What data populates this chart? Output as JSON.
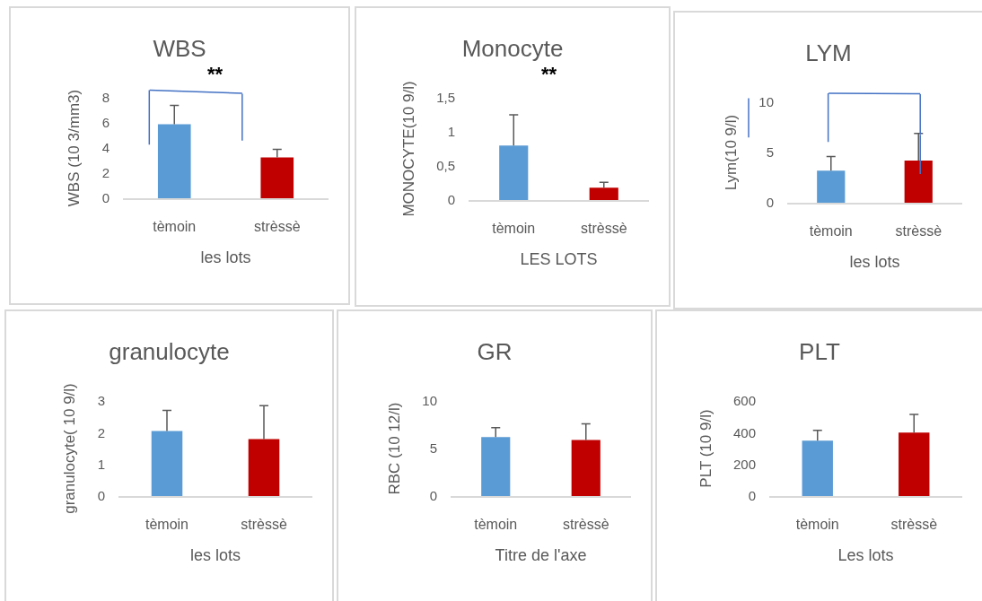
{
  "chart_data": [
    {
      "type": "bar",
      "title": "WBS",
      "xlabel": "les lots",
      "ylabel": "WBS (10 3/mm3)",
      "categories": [
        "tèmoin",
        "strèssè"
      ],
      "values": [
        5.9,
        3.25
      ],
      "colors": [
        "#5b9bd5",
        "#c00000"
      ],
      "errors": [
        [
          5.9,
          7.4
        ],
        [
          3.25,
          3.9
        ]
      ],
      "ylim": [
        0,
        8
      ],
      "yticks": [
        0,
        2,
        4,
        6,
        8
      ],
      "annotations": [
        "**"
      ]
    },
    {
      "type": "bar",
      "title": "Monocyte",
      "xlabel": "LES LOTS",
      "ylabel": "MONOCYTE(10 9/l)",
      "categories": [
        "tèmoin",
        "strèssè"
      ],
      "values": [
        0.8,
        0.18
      ],
      "colors": [
        "#5b9bd5",
        "#c00000"
      ],
      "errors": [
        [
          0.8,
          1.25
        ],
        [
          0.18,
          0.26
        ]
      ],
      "ylim": [
        0,
        1.5
      ],
      "yticks": [
        0,
        {
          "value": 0.5,
          "label": "0,5"
        },
        1,
        {
          "value": 1.5,
          "label": "1,5"
        }
      ],
      "annotations": [
        "**"
      ]
    },
    {
      "type": "bar",
      "title": "LYM",
      "xlabel": "les lots",
      "ylabel": "Lym(10 9/l)",
      "categories": [
        "tèmoin",
        "strèssè"
      ],
      "values": [
        3.2,
        4.2
      ],
      "colors": [
        "#5b9bd5",
        "#c00000"
      ],
      "errors": [
        [
          3.2,
          4.6
        ],
        [
          4.2,
          6.9
        ]
      ],
      "ylim": [
        0,
        10
      ],
      "yticks": [
        0,
        5,
        10
      ]
    },
    {
      "type": "bar",
      "title": "granulocyte",
      "xlabel": "les lots",
      "ylabel": "granulocyte( 10 9/l)",
      "categories": [
        "tèmoin",
        "strèssè"
      ],
      "values": [
        2.05,
        1.8
      ],
      "colors": [
        "#5b9bd5",
        "#c00000"
      ],
      "errors": [
        [
          2.05,
          2.7
        ],
        [
          1.8,
          2.85
        ]
      ],
      "ylim": [
        0,
        3
      ],
      "yticks": [
        0,
        1,
        2,
        3
      ]
    },
    {
      "type": "bar",
      "title": "GR",
      "xlabel": "Titre de l'axe",
      "ylabel": "RBC (10 12/l)",
      "categories": [
        "tèmoin",
        "strèssè"
      ],
      "values": [
        6.2,
        5.9
      ],
      "colors": [
        "#5b9bd5",
        "#c00000"
      ],
      "errors": [
        [
          6.2,
          7.2
        ],
        [
          5.9,
          7.6
        ]
      ],
      "ylim": [
        0,
        10
      ],
      "yticks": [
        0,
        5,
        10
      ]
    },
    {
      "type": "bar",
      "title": "PLT",
      "xlabel": "Les lots",
      "ylabel": "PLT (10 9/l)",
      "categories": [
        "tèmoin",
        "strèssè"
      ],
      "values": [
        350,
        400
      ],
      "colors": [
        "#5b9bd5",
        "#c00000"
      ],
      "errors": [
        [
          350,
          415
        ],
        [
          400,
          515
        ]
      ],
      "ylim": [
        0,
        600
      ],
      "yticks": [
        0,
        200,
        400,
        600
      ]
    }
  ]
}
